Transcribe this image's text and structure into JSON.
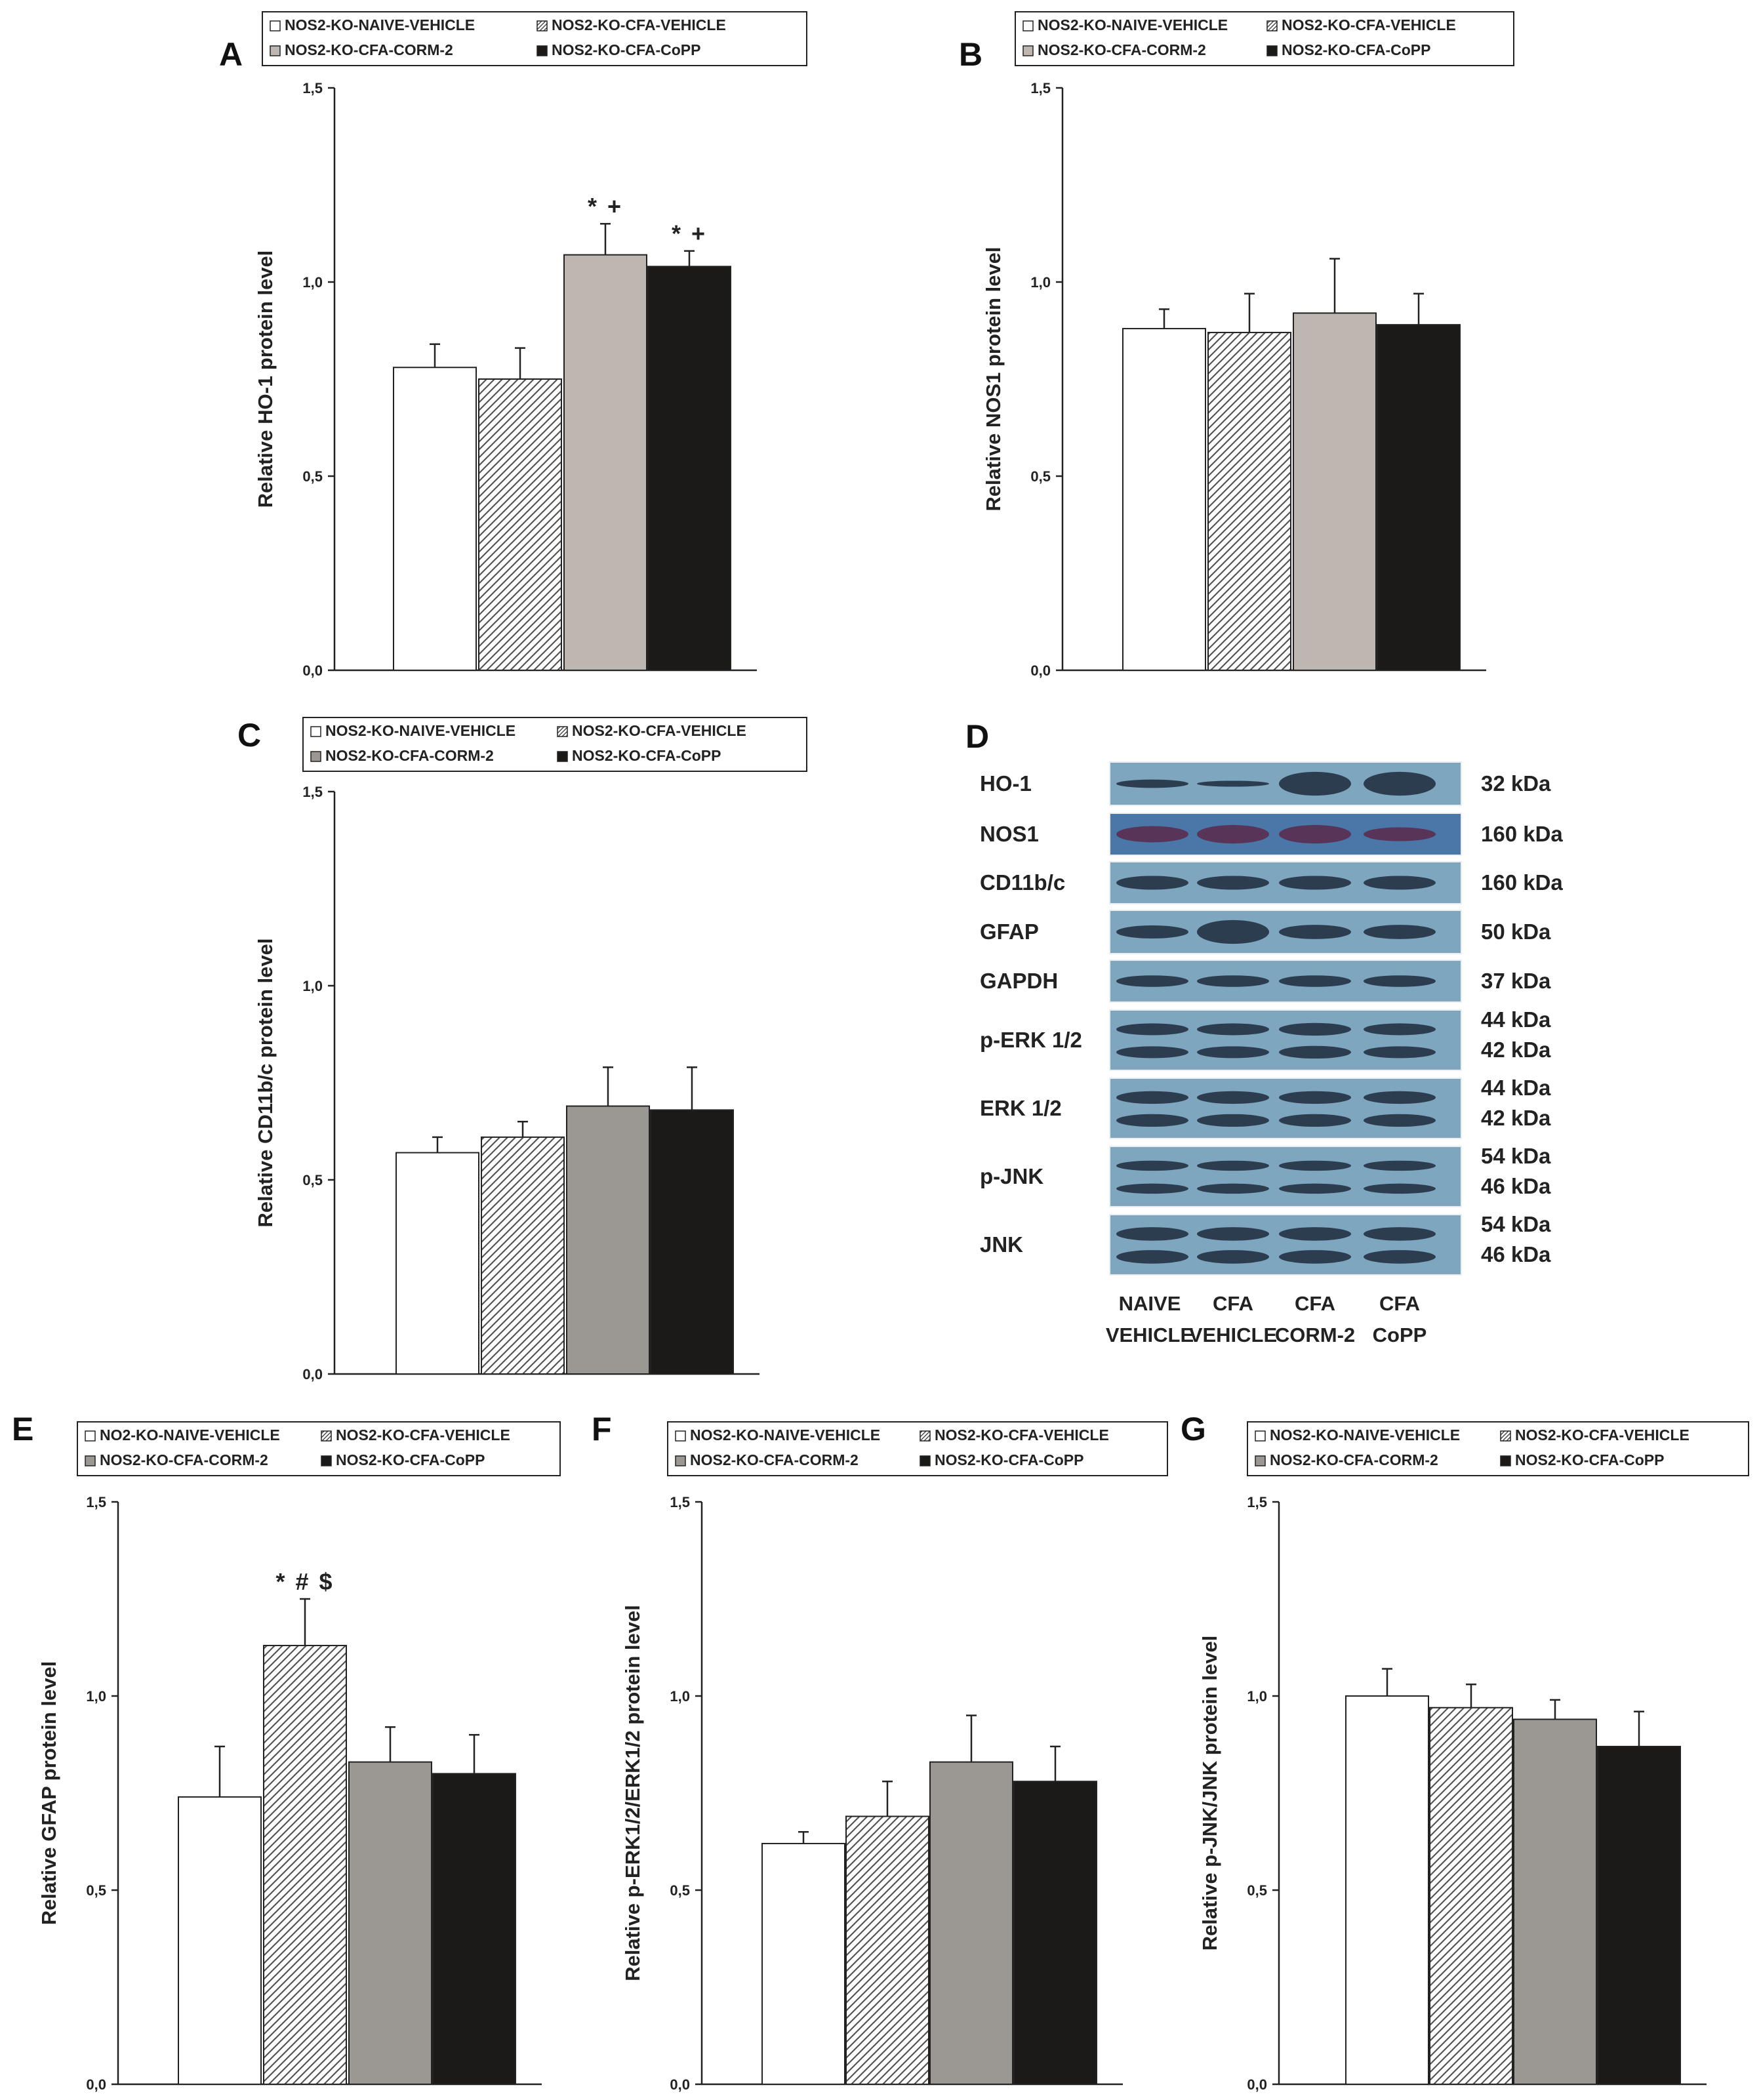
{
  "figure": {
    "blot": {
      "letter": "D",
      "proteins": [
        {
          "name": "HO-1",
          "kda": [
            "32 kDa"
          ]
        },
        {
          "name": "NOS1",
          "kda": [
            "160 kDa"
          ]
        },
        {
          "name": "CD11b/c",
          "kda": [
            "160 kDa"
          ]
        },
        {
          "name": "GFAP",
          "kda": [
            "50 kDa"
          ]
        },
        {
          "name": "GAPDH",
          "kda": [
            "37 kDa"
          ]
        },
        {
          "name": "p-ERK 1/2",
          "kda": [
            "44 kDa",
            "42 kDa"
          ]
        },
        {
          "name": "ERK 1/2",
          "kda": [
            "44 kDa",
            "42 kDa"
          ]
        },
        {
          "name": "p-JNK",
          "kda": [
            "54 kDa",
            "46 kDa"
          ]
        },
        {
          "name": "JNK",
          "kda": [
            "54 kDa",
            "46 kDa"
          ]
        }
      ],
      "lanes": [
        {
          "line1": "NAIVE",
          "line2": "VEHICLE"
        },
        {
          "line1": "CFA",
          "line2": "VEHICLE"
        },
        {
          "line1": "CFA",
          "line2": "CORM-2"
        },
        {
          "line1": "CFA",
          "line2": "CoPP"
        }
      ],
      "colors": {
        "background": "#7ea6bf",
        "band": "#1e2a3c",
        "nos1_band": "#5a2a4a",
        "nos1_background": "#4a76a8"
      }
    }
  },
  "chart_data": [
    {
      "id": "A",
      "type": "bar",
      "legend": [
        "NOS2-KO-NAIVE-VEHICLE",
        "NOS2-KO-CFA-VEHICLE",
        "NOS2-KO-CFA-CORM-2",
        "NOS2-KO-CFA-CoPP"
      ],
      "categories": [
        "NOS2-KO-NAIVE-VEHICLE",
        "NOS2-KO-CFA-VEHICLE",
        "NOS2-KO-CFA-CORM-2",
        "NOS2-KO-CFA-CoPP"
      ],
      "values": [
        0.78,
        0.75,
        1.07,
        1.04
      ],
      "errors": [
        0.06,
        0.08,
        0.08,
        0.04
      ],
      "annotations": [
        "",
        "",
        "* +",
        "* +"
      ],
      "ylabel": "Relative HO-1 protein level",
      "yticks": [
        "0,0",
        "0,5",
        "1,0",
        "1,5"
      ],
      "ylim": [
        0,
        1.5
      ],
      "fills": [
        "#ffffff",
        "hatch",
        "#bdb6b1",
        "#1c1a19"
      ]
    },
    {
      "id": "B",
      "type": "bar",
      "legend": [
        "NOS2-KO-NAIVE-VEHICLE",
        "NOS2-KO-CFA-VEHICLE",
        "NOS2-KO-CFA-CORM-2",
        "NOS2-KO-CFA-CoPP"
      ],
      "categories": [
        "NOS2-KO-NAIVE-VEHICLE",
        "NOS2-KO-CFA-VEHICLE",
        "NOS2-KO-CFA-CORM-2",
        "NOS2-KO-CFA-CoPP"
      ],
      "values": [
        0.88,
        0.87,
        0.92,
        0.89
      ],
      "errors": [
        0.05,
        0.1,
        0.14,
        0.08
      ],
      "annotations": [
        "",
        "",
        "",
        ""
      ],
      "ylabel": "Relative NOS1 protein level",
      "yticks": [
        "0,0",
        "0,5",
        "1,0",
        "1,5"
      ],
      "ylim": [
        0,
        1.5
      ],
      "fills": [
        "#ffffff",
        "hatch",
        "#bdb6b1",
        "#1c1a19"
      ]
    },
    {
      "id": "C",
      "type": "bar",
      "legend": [
        "NOS2-KO-NAIVE-VEHICLE",
        "NOS2-KO-CFA-VEHICLE",
        "NOS2-KO-CFA-CORM-2",
        "NOS2-KO-CFA-CoPP"
      ],
      "categories": [
        "NOS2-KO-NAIVE-VEHICLE",
        "NOS2-KO-CFA-VEHICLE",
        "NOS2-KO-CFA-CORM-2",
        "NOS2-KO-CFA-CoPP"
      ],
      "values": [
        0.57,
        0.61,
        0.69,
        0.68
      ],
      "errors": [
        0.04,
        0.04,
        0.1,
        0.11
      ],
      "annotations": [
        "",
        "",
        "",
        ""
      ],
      "ylabel": "Relative CD11b/c protein level",
      "yticks": [
        "0,0",
        "0,5",
        "1,0",
        "1,5"
      ],
      "ylim": [
        0,
        1.5
      ],
      "fills": [
        "#ffffff",
        "hatch",
        "#9b9792",
        "#1c1a19"
      ]
    },
    {
      "id": "E",
      "type": "bar",
      "legend": [
        "NO2-KO-NAIVE-VEHICLE",
        "NOS2-KO-CFA-VEHICLE",
        "NOS2-KO-CFA-CORM-2",
        "NOS2-KO-CFA-CoPP"
      ],
      "categories": [
        "NO2-KO-NAIVE-VEHICLE",
        "NOS2-KO-CFA-VEHICLE",
        "NOS2-KO-CFA-CORM-2",
        "NOS2-KO-CFA-CoPP"
      ],
      "values": [
        0.74,
        1.13,
        0.83,
        0.8
      ],
      "errors": [
        0.13,
        0.12,
        0.09,
        0.1
      ],
      "annotations": [
        "",
        "* # $",
        "",
        ""
      ],
      "ylabel": "Relative GFAP protein level",
      "yticks": [
        "0,0",
        "0,5",
        "1,0",
        "1,5"
      ],
      "ylim": [
        0,
        1.5
      ],
      "fills": [
        "#ffffff",
        "hatch",
        "#9b9792",
        "#1c1a19"
      ]
    },
    {
      "id": "F",
      "type": "bar",
      "legend": [
        "NOS2-KO-NAIVE-VEHICLE",
        "NOS2-KO-CFA-VEHICLE",
        "NOS2-KO-CFA-CORM-2",
        "NOS2-KO-CFA-CoPP"
      ],
      "categories": [
        "NOS2-KO-NAIVE-VEHICLE",
        "NOS2-KO-CFA-VEHICLE",
        "NOS2-KO-CFA-CORM-2",
        "NOS2-KO-CFA-CoPP"
      ],
      "values": [
        0.62,
        0.69,
        0.83,
        0.78
      ],
      "errors": [
        0.03,
        0.09,
        0.12,
        0.09
      ],
      "annotations": [
        "",
        "",
        "",
        ""
      ],
      "ylabel": "Relative p-ERK1/2/ERK1/2 protein level",
      "yticks": [
        "0,0",
        "0,5",
        "1,0",
        "1,5"
      ],
      "ylim": [
        0,
        1.5
      ],
      "fills": [
        "#ffffff",
        "hatch",
        "#9b9792",
        "#1c1a19"
      ]
    },
    {
      "id": "G",
      "type": "bar",
      "legend": [
        "NOS2-KO-NAIVE-VEHICLE",
        "NOS2-KO-CFA-VEHICLE",
        "NOS2-KO-CFA-CORM-2",
        "NOS2-KO-CFA-CoPP"
      ],
      "categories": [
        "NOS2-KO-NAIVE-VEHICLE",
        "NOS2-KO-CFA-VEHICLE",
        "NOS2-KO-CFA-CORM-2",
        "NOS2-KO-CFA-CoPP"
      ],
      "values": [
        1.0,
        0.97,
        0.94,
        0.87
      ],
      "errors": [
        0.07,
        0.06,
        0.05,
        0.09
      ],
      "annotations": [
        "",
        "",
        "",
        ""
      ],
      "ylabel": "Relative p-JNK/JNK protein level",
      "yticks": [
        "0,0",
        "0,5",
        "1,0",
        "1,5"
      ],
      "ylim": [
        0,
        1.5
      ],
      "fills": [
        "#ffffff",
        "hatch",
        "#9b9792",
        "#1c1a19"
      ]
    }
  ]
}
